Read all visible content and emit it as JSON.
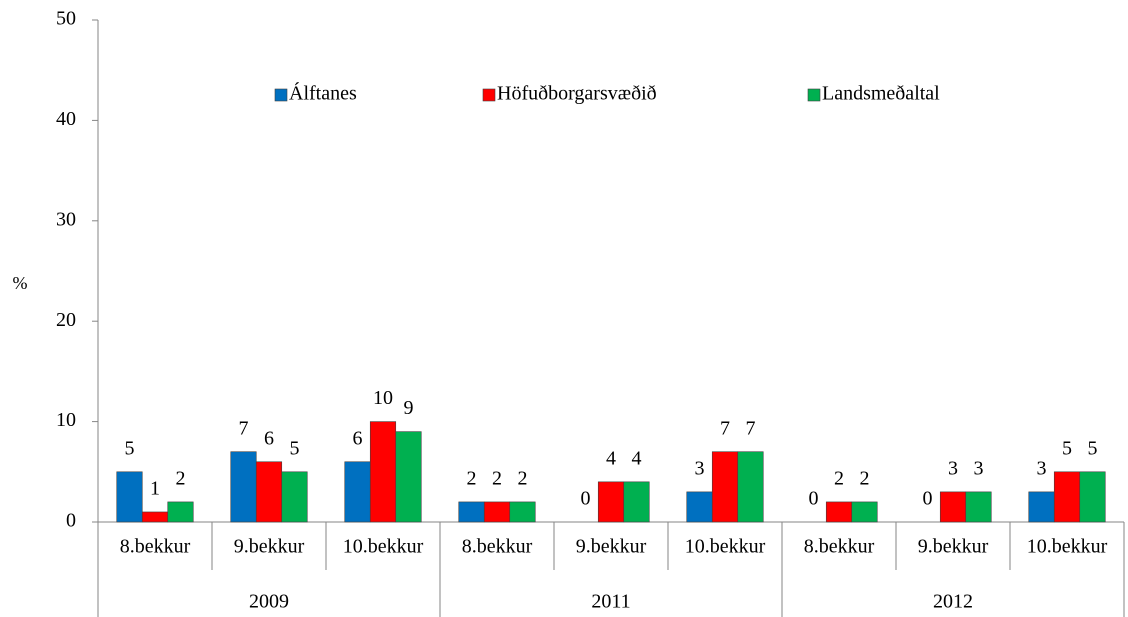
{
  "chart_data": {
    "type": "bar",
    "y_label": "%",
    "categories": [
      "8.bekkur",
      "9.bekkur",
      "10.bekkur",
      "8.bekkur",
      "9.bekkur",
      "10.bekkur",
      "8.bekkur",
      "9.bekkur",
      "10.bekkur"
    ],
    "category_groups": [
      "2009",
      "2011",
      "2012"
    ],
    "series": [
      {
        "name": "Álftanes",
        "color": "#0070c0",
        "values": [
          5,
          7,
          6,
          2,
          0,
          3,
          0,
          0,
          3
        ]
      },
      {
        "name": "Höfuðborgarsvæðið",
        "color": "#ff0000",
        "values": [
          1,
          6,
          10,
          2,
          4,
          7,
          2,
          3,
          5
        ]
      },
      {
        "name": "Landsmeðaltal",
        "color": "#00b050",
        "values": [
          2,
          5,
          9,
          2,
          4,
          7,
          2,
          3,
          5
        ]
      }
    ],
    "ylim": [
      0,
      50
    ],
    "yticks": [
      0,
      10,
      20,
      30,
      40,
      50
    ],
    "grid": false,
    "legend": "top",
    "data_labels": true
  }
}
